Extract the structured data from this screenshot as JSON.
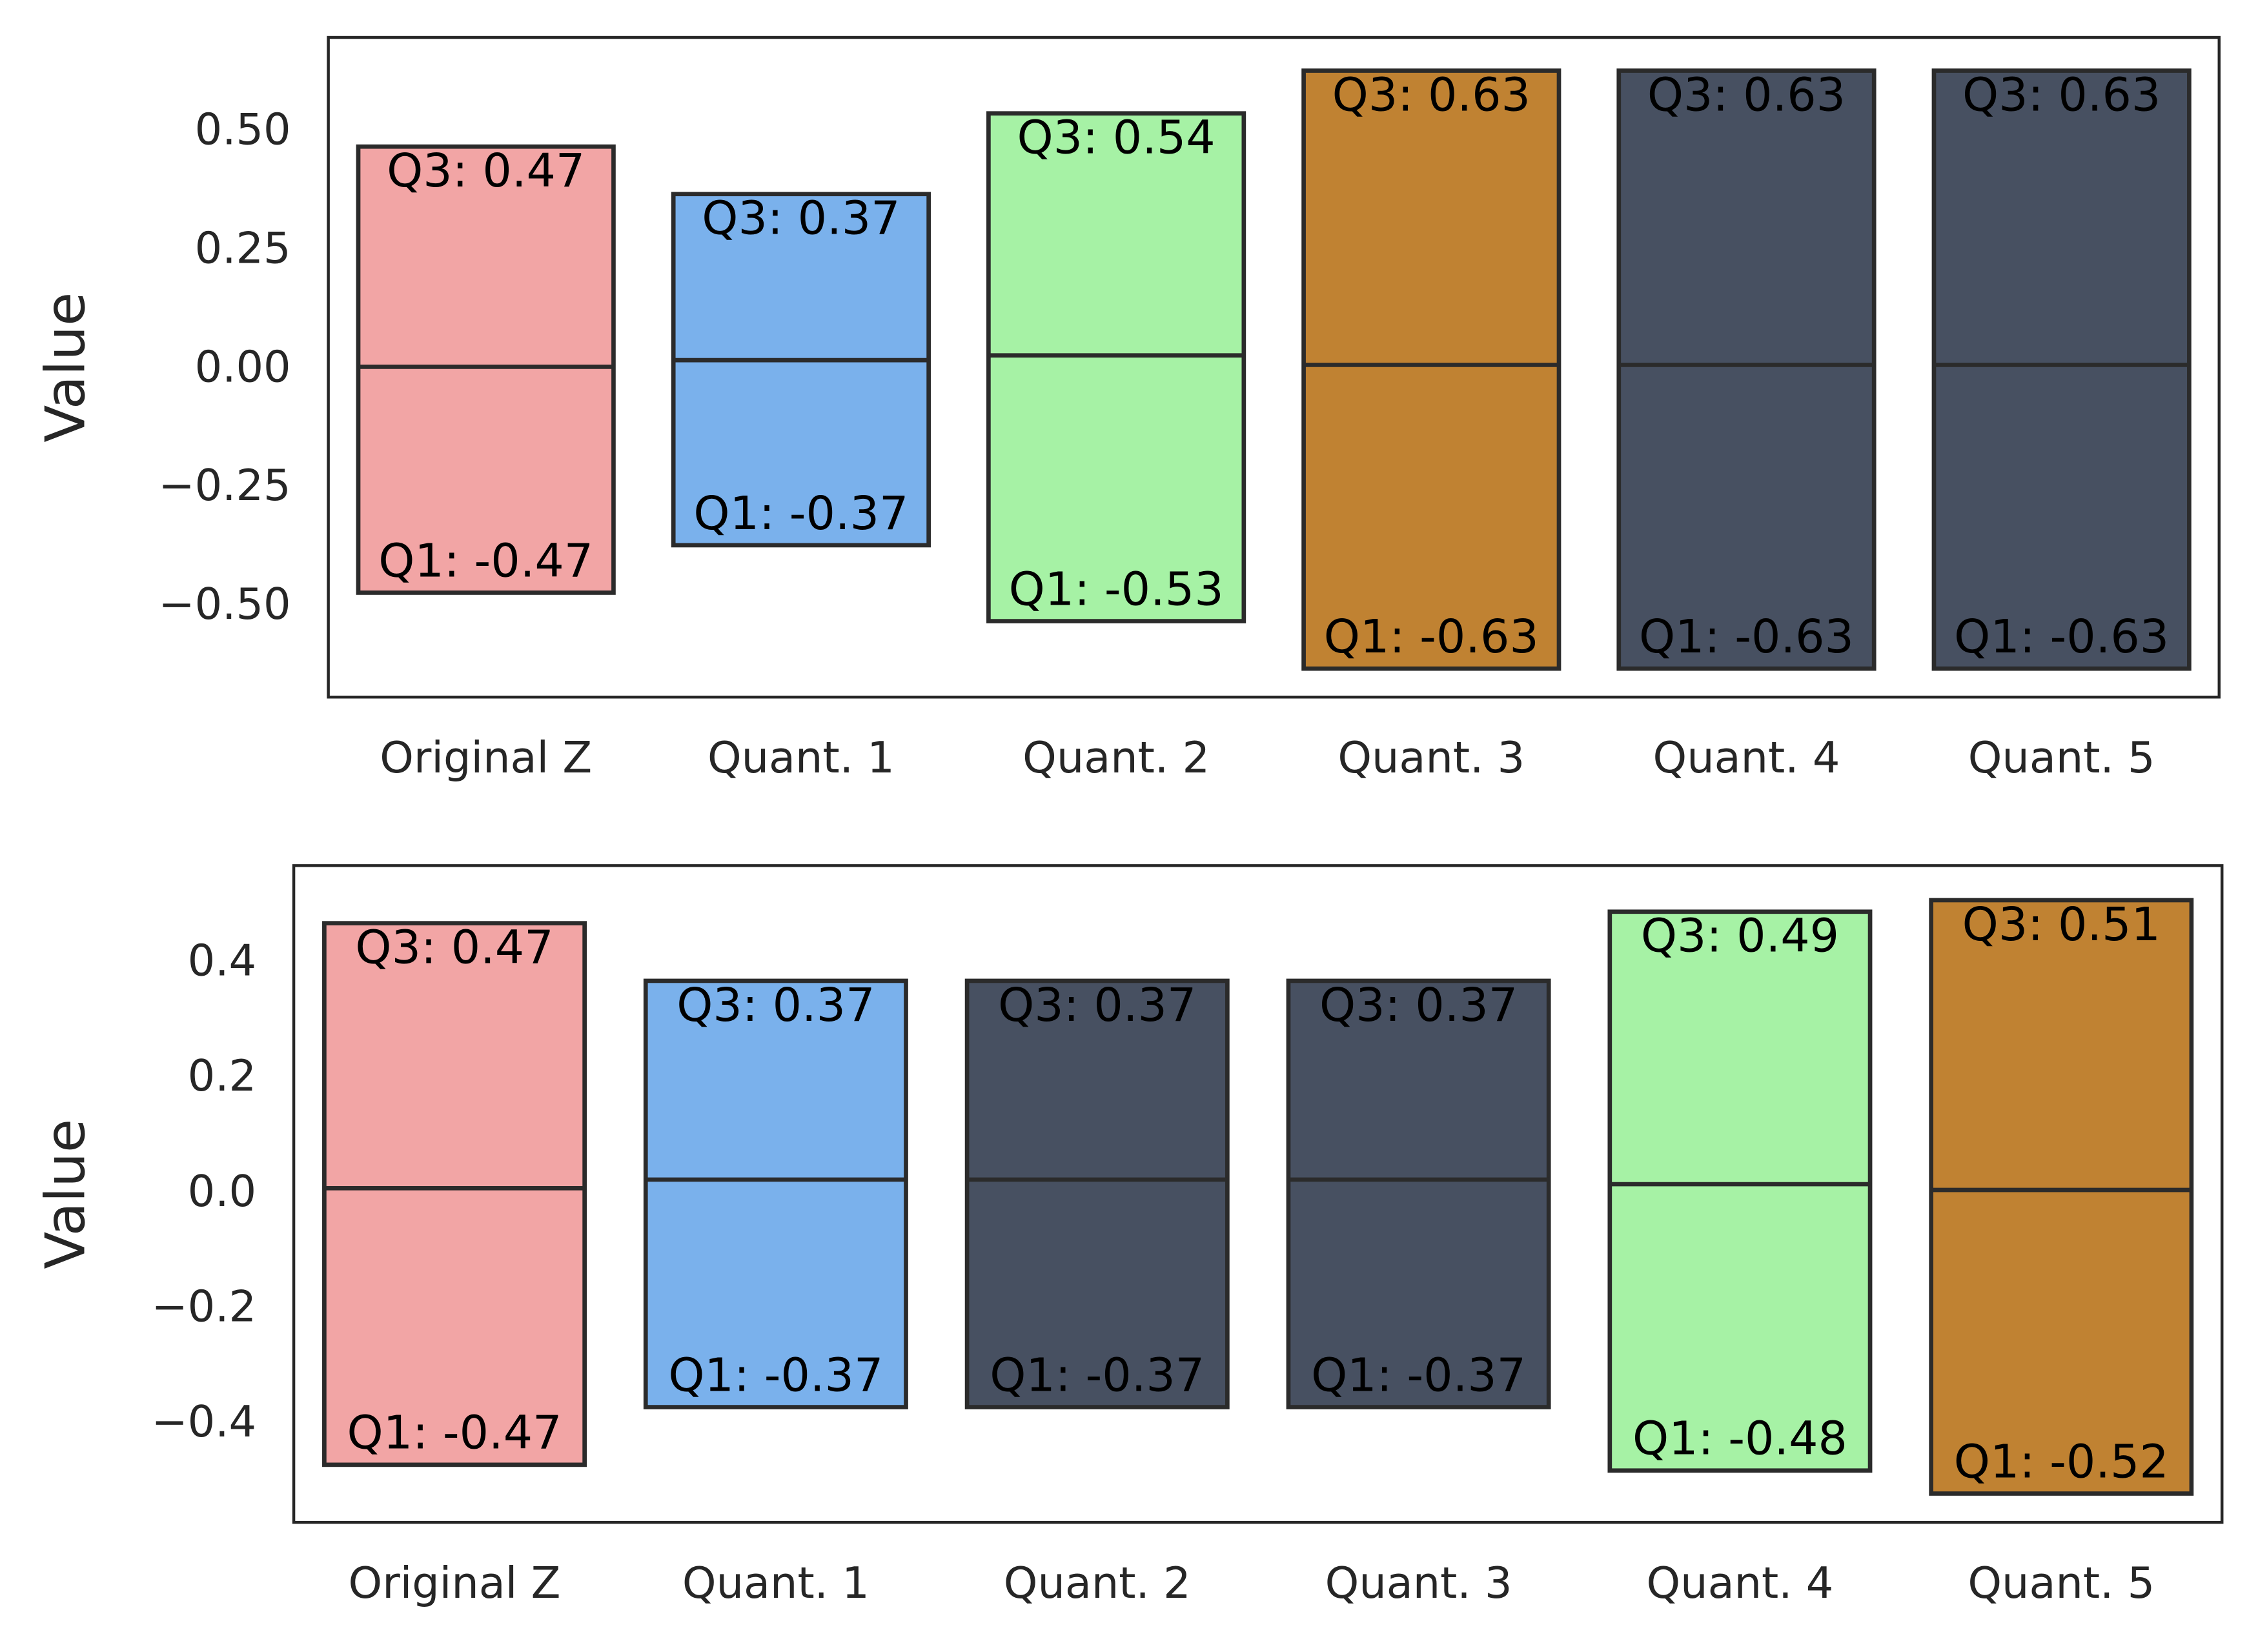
{
  "chart_data": [
    {
      "type": "box",
      "ylabel": "Value",
      "categories": [
        "Original Z",
        "Quant. 1",
        "Quant. 2",
        "Quant. 3",
        "Quant. 4",
        "Quant. 5"
      ],
      "colors": [
        "#f2a5a5",
        "#7ab1ec",
        "#a6f2a5",
        "#c08232",
        "#475061",
        "#475061"
      ],
      "q1": [
        -0.47,
        -0.37,
        -0.53,
        -0.63,
        -0.63,
        -0.63
      ],
      "median": [
        0.006,
        0.02,
        0.03,
        0.01,
        0.01,
        0.01
      ],
      "q3": [
        0.47,
        0.37,
        0.54,
        0.63,
        0.63,
        0.63
      ],
      "q1_labels": [
        "Q1: -0.47",
        "Q1: -0.37",
        "Q1: -0.53",
        "Q1: -0.63",
        "Q1: -0.63",
        "Q1: -0.63"
      ],
      "q3_labels": [
        "Q3: 0.47",
        "Q3: 0.37",
        "Q3: 0.54",
        "Q3: 0.63",
        "Q3: 0.63",
        "Q3: 0.63"
      ],
      "ylim": [
        -0.69,
        0.7
      ],
      "yticks": [
        {
          "value": 0.5,
          "label": "0.50"
        },
        {
          "value": 0.25,
          "label": "0.25"
        },
        {
          "value": 0,
          "label": "0.00"
        },
        {
          "value": -0.25,
          "label": "−0.25"
        },
        {
          "value": -0.5,
          "label": "−0.50"
        }
      ]
    },
    {
      "type": "box",
      "ylabel": "Value",
      "categories": [
        "Original Z",
        "Quant. 1",
        "Quant. 2",
        "Quant. 3",
        "Quant. 4",
        "Quant. 5"
      ],
      "colors": [
        "#f2a5a5",
        "#7ab1ec",
        "#475061",
        "#475061",
        "#a6f2a5",
        "#c08232"
      ],
      "q1": [
        -0.47,
        -0.37,
        -0.37,
        -0.37,
        -0.48,
        -0.52
      ],
      "median": [
        0.01,
        0.025,
        0.025,
        0.025,
        0.017,
        0.007
      ],
      "q3": [
        0.47,
        0.37,
        0.37,
        0.37,
        0.49,
        0.51
      ],
      "q1_labels": [
        "Q1: -0.47",
        "Q1: -0.37",
        "Q1: -0.37",
        "Q1: -0.37",
        "Q1: -0.48",
        "Q1: -0.52"
      ],
      "q3_labels": [
        "Q3: 0.47",
        "Q3: 0.37",
        "Q3: 0.37",
        "Q3: 0.37",
        "Q3: 0.49",
        "Q3: 0.51"
      ],
      "ylim": [
        -0.57,
        0.57
      ],
      "yticks": [
        0.4,
        0.2,
        {
          "value": 0,
          "label": "0.0"
        },
        {
          "value": -0.2,
          "label": "−0.2"
        },
        {
          "value": -0.4,
          "label": "−0.4"
        }
      ]
    }
  ]
}
